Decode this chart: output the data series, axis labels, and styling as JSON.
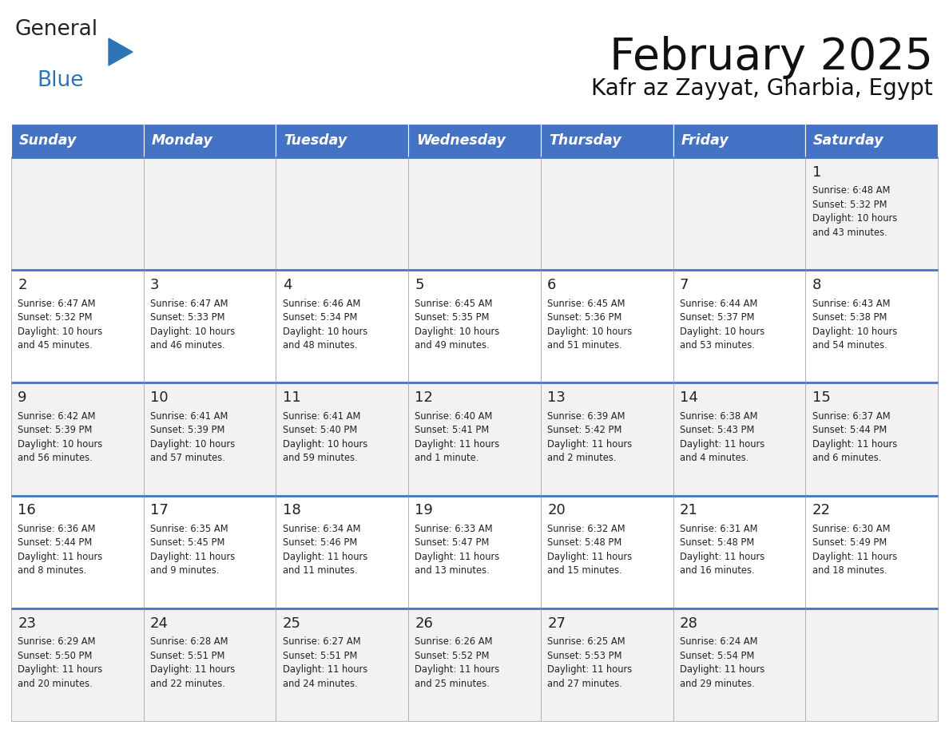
{
  "title": "February 2025",
  "subtitle": "Kafr az Zayyat, Gharbia, Egypt",
  "header_bg": "#4472C4",
  "header_text_color": "#FFFFFF",
  "day_headers": [
    "Sunday",
    "Monday",
    "Tuesday",
    "Wednesday",
    "Thursday",
    "Friday",
    "Saturday"
  ],
  "cell_bg_light": "#F2F2F2",
  "cell_bg_white": "#FFFFFF",
  "cell_border_color": "#AAAAAA",
  "text_color": "#222222",
  "logo_general_color": "#222222",
  "logo_blue_color": "#2E75B6",
  "header_line_color": "#4472C4",
  "weeks": [
    [
      {
        "day": null,
        "info": null
      },
      {
        "day": null,
        "info": null
      },
      {
        "day": null,
        "info": null
      },
      {
        "day": null,
        "info": null
      },
      {
        "day": null,
        "info": null
      },
      {
        "day": null,
        "info": null
      },
      {
        "day": 1,
        "info": "Sunrise: 6:48 AM\nSunset: 5:32 PM\nDaylight: 10 hours\nand 43 minutes."
      }
    ],
    [
      {
        "day": 2,
        "info": "Sunrise: 6:47 AM\nSunset: 5:32 PM\nDaylight: 10 hours\nand 45 minutes."
      },
      {
        "day": 3,
        "info": "Sunrise: 6:47 AM\nSunset: 5:33 PM\nDaylight: 10 hours\nand 46 minutes."
      },
      {
        "day": 4,
        "info": "Sunrise: 6:46 AM\nSunset: 5:34 PM\nDaylight: 10 hours\nand 48 minutes."
      },
      {
        "day": 5,
        "info": "Sunrise: 6:45 AM\nSunset: 5:35 PM\nDaylight: 10 hours\nand 49 minutes."
      },
      {
        "day": 6,
        "info": "Sunrise: 6:45 AM\nSunset: 5:36 PM\nDaylight: 10 hours\nand 51 minutes."
      },
      {
        "day": 7,
        "info": "Sunrise: 6:44 AM\nSunset: 5:37 PM\nDaylight: 10 hours\nand 53 minutes."
      },
      {
        "day": 8,
        "info": "Sunrise: 6:43 AM\nSunset: 5:38 PM\nDaylight: 10 hours\nand 54 minutes."
      }
    ],
    [
      {
        "day": 9,
        "info": "Sunrise: 6:42 AM\nSunset: 5:39 PM\nDaylight: 10 hours\nand 56 minutes."
      },
      {
        "day": 10,
        "info": "Sunrise: 6:41 AM\nSunset: 5:39 PM\nDaylight: 10 hours\nand 57 minutes."
      },
      {
        "day": 11,
        "info": "Sunrise: 6:41 AM\nSunset: 5:40 PM\nDaylight: 10 hours\nand 59 minutes."
      },
      {
        "day": 12,
        "info": "Sunrise: 6:40 AM\nSunset: 5:41 PM\nDaylight: 11 hours\nand 1 minute."
      },
      {
        "day": 13,
        "info": "Sunrise: 6:39 AM\nSunset: 5:42 PM\nDaylight: 11 hours\nand 2 minutes."
      },
      {
        "day": 14,
        "info": "Sunrise: 6:38 AM\nSunset: 5:43 PM\nDaylight: 11 hours\nand 4 minutes."
      },
      {
        "day": 15,
        "info": "Sunrise: 6:37 AM\nSunset: 5:44 PM\nDaylight: 11 hours\nand 6 minutes."
      }
    ],
    [
      {
        "day": 16,
        "info": "Sunrise: 6:36 AM\nSunset: 5:44 PM\nDaylight: 11 hours\nand 8 minutes."
      },
      {
        "day": 17,
        "info": "Sunrise: 6:35 AM\nSunset: 5:45 PM\nDaylight: 11 hours\nand 9 minutes."
      },
      {
        "day": 18,
        "info": "Sunrise: 6:34 AM\nSunset: 5:46 PM\nDaylight: 11 hours\nand 11 minutes."
      },
      {
        "day": 19,
        "info": "Sunrise: 6:33 AM\nSunset: 5:47 PM\nDaylight: 11 hours\nand 13 minutes."
      },
      {
        "day": 20,
        "info": "Sunrise: 6:32 AM\nSunset: 5:48 PM\nDaylight: 11 hours\nand 15 minutes."
      },
      {
        "day": 21,
        "info": "Sunrise: 6:31 AM\nSunset: 5:48 PM\nDaylight: 11 hours\nand 16 minutes."
      },
      {
        "day": 22,
        "info": "Sunrise: 6:30 AM\nSunset: 5:49 PM\nDaylight: 11 hours\nand 18 minutes."
      }
    ],
    [
      {
        "day": 23,
        "info": "Sunrise: 6:29 AM\nSunset: 5:50 PM\nDaylight: 11 hours\nand 20 minutes."
      },
      {
        "day": 24,
        "info": "Sunrise: 6:28 AM\nSunset: 5:51 PM\nDaylight: 11 hours\nand 22 minutes."
      },
      {
        "day": 25,
        "info": "Sunrise: 6:27 AM\nSunset: 5:51 PM\nDaylight: 11 hours\nand 24 minutes."
      },
      {
        "day": 26,
        "info": "Sunrise: 6:26 AM\nSunset: 5:52 PM\nDaylight: 11 hours\nand 25 minutes."
      },
      {
        "day": 27,
        "info": "Sunrise: 6:25 AM\nSunset: 5:53 PM\nDaylight: 11 hours\nand 27 minutes."
      },
      {
        "day": 28,
        "info": "Sunrise: 6:24 AM\nSunset: 5:54 PM\nDaylight: 11 hours\nand 29 minutes."
      },
      {
        "day": null,
        "info": null
      }
    ]
  ]
}
